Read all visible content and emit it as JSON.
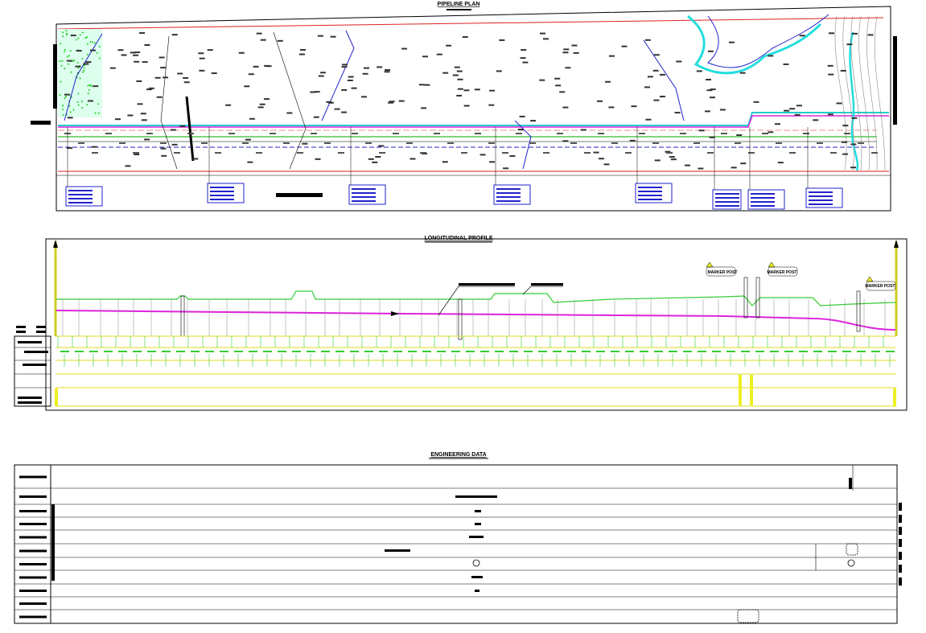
{
  "pipeline_plan": {
    "title": "PIPELINE PLAN"
  },
  "longitudinal_profile": {
    "title": "LONGITUDINAL PROFILE",
    "markers": [
      "MARKER POST",
      "MARKER POST",
      "MARKER POST"
    ]
  },
  "engineering_data": {
    "title": "ENGINEERING DATA"
  }
}
